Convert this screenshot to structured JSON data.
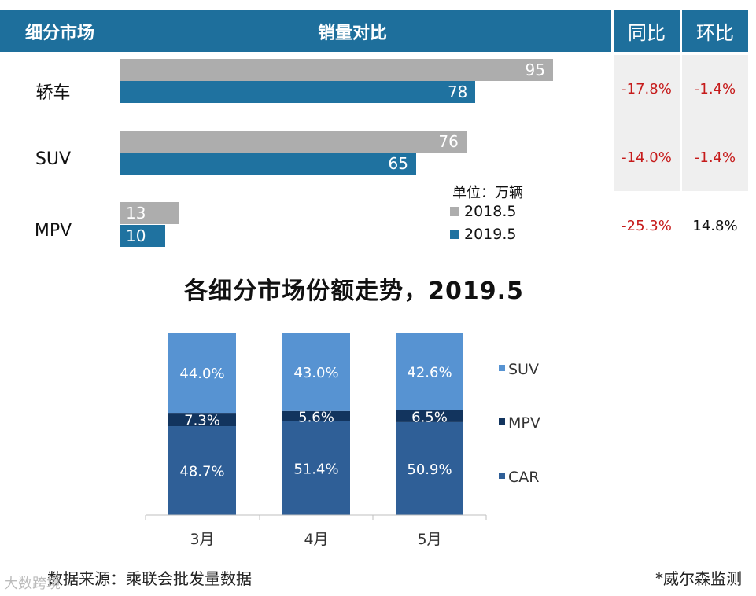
{
  "header": {
    "segment_label": "细分市场",
    "comparison_label": "销量对比",
    "yoy_label": "同比",
    "mom_label": "环比"
  },
  "sales_rows": [
    {
      "category": "轿车",
      "v2018": 95,
      "v2019": 78,
      "yoy": "-17.8%",
      "mom": "-1.4%"
    },
    {
      "category": "SUV",
      "v2018": 76,
      "v2019": 65,
      "yoy": "-14.0%",
      "mom": "-1.4%"
    },
    {
      "category": "MPV",
      "v2018": 13,
      "v2019": 10,
      "yoy": "-25.3%",
      "mom": "14.8%"
    }
  ],
  "unit_label": "单位：万辆",
  "legend_top": [
    {
      "name": "2018.5",
      "color": "#adadad"
    },
    {
      "name": "2019.5",
      "color": "#1f72a0"
    }
  ],
  "chart_data": [
    {
      "type": "bar",
      "orientation": "horizontal",
      "categories": [
        "轿车",
        "SUV",
        "MPV"
      ],
      "series": [
        {
          "name": "2018.5",
          "values": [
            95,
            76,
            13
          ]
        },
        {
          "name": "2019.5",
          "values": [
            78,
            65,
            10
          ]
        }
      ],
      "xlim": [
        0,
        100
      ],
      "ylabel": "",
      "xlabel": "",
      "legend": "bottom-right"
    },
    {
      "type": "bar",
      "stacked": true,
      "title": "各细分市场份额走势，2019.5",
      "categories": [
        "3月",
        "4月",
        "5月"
      ],
      "series": [
        {
          "name": "CAR",
          "values": [
            48.7,
            51.4,
            50.9
          ],
          "labels": [
            "48.7%",
            "51.4%",
            "50.9%"
          ],
          "color": "#2f5f97"
        },
        {
          "name": "MPV",
          "values": [
            7.3,
            5.6,
            6.5
          ],
          "labels": [
            "7.3%",
            "5.6%",
            "6.5%"
          ],
          "color": "#12345e"
        },
        {
          "name": "SUV",
          "values": [
            44.0,
            43.0,
            42.6
          ],
          "labels": [
            "44.0%",
            "43.0%",
            "42.6%"
          ],
          "color": "#5793d2"
        }
      ],
      "ylim": [
        0,
        100
      ],
      "legend": "right",
      "legend_order": [
        "SUV",
        "MPV",
        "CAR"
      ]
    }
  ],
  "footer": {
    "source": "数据来源：乘联会批发量数据",
    "credit": "*威尔森监测",
    "watermark": "大数跨境"
  }
}
